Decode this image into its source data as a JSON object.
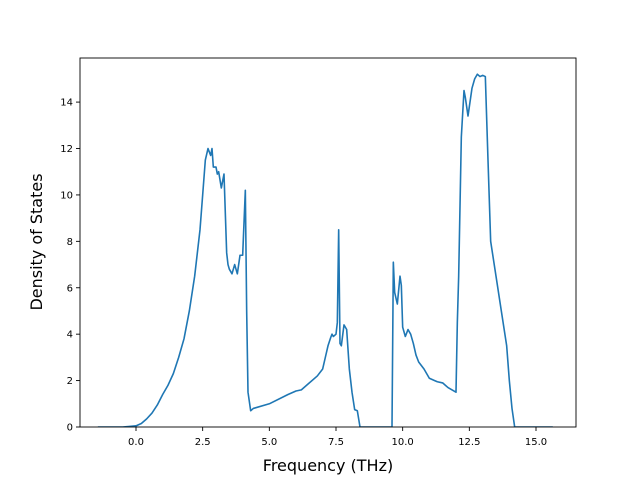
{
  "chart_data": {
    "type": "line",
    "title": "",
    "xlabel": "Frequency (THz)",
    "ylabel": "Density of States",
    "xlim": [
      -2.1,
      16.5
    ],
    "ylim": [
      0,
      15.9
    ],
    "xticks": [
      0.0,
      2.5,
      5.0,
      7.5,
      10.0,
      12.5,
      15.0
    ],
    "xtick_labels": [
      "0.0",
      "2.5",
      "5.0",
      "7.5",
      "10.0",
      "12.5",
      "15.0"
    ],
    "yticks": [
      0,
      2,
      4,
      6,
      8,
      10,
      12,
      14
    ],
    "ytick_labels": [
      "0",
      "2",
      "4",
      "6",
      "8",
      "10",
      "12",
      "14"
    ],
    "grid": false,
    "legend": "none",
    "line_color": "#1f77b4",
    "series": [
      {
        "x": [
          -1.4,
          -0.5,
          0.0,
          0.2,
          0.4,
          0.6,
          0.8,
          1.0,
          1.2,
          1.4,
          1.6,
          1.8,
          2.0,
          2.2,
          2.4,
          2.5,
          2.6,
          2.7,
          2.8,
          2.85,
          2.9,
          3.0,
          3.05,
          3.1,
          3.2,
          3.3,
          3.4,
          3.45,
          3.5,
          3.6,
          3.7,
          3.8,
          3.9,
          4.0,
          4.1,
          4.15,
          4.2,
          4.3,
          4.4,
          5.0,
          5.7,
          6.0,
          6.2,
          6.5,
          6.8,
          7.0,
          7.1,
          7.2,
          7.3,
          7.35,
          7.4,
          7.5,
          7.55,
          7.6,
          7.65,
          7.7,
          7.8,
          7.9,
          8.0,
          8.1,
          8.2,
          8.3,
          8.4,
          9.0,
          9.6,
          9.65,
          9.7,
          9.8,
          9.9,
          9.95,
          10.0,
          10.1,
          10.2,
          10.3,
          10.4,
          10.5,
          10.6,
          10.8,
          11.0,
          11.2,
          11.3,
          11.5,
          11.6,
          11.7,
          12.0,
          12.05,
          12.1,
          12.2,
          12.3,
          12.35,
          12.45,
          12.6,
          12.7,
          12.8,
          12.9,
          13.0,
          13.1,
          13.2,
          13.3,
          13.5,
          13.7,
          13.9,
          14.0,
          14.1,
          14.2,
          14.3,
          14.5,
          15.0,
          15.6
        ],
        "y": [
          0.0,
          0.0,
          0.05,
          0.15,
          0.35,
          0.6,
          0.95,
          1.4,
          1.8,
          2.3,
          3.0,
          3.8,
          5.0,
          6.5,
          8.5,
          10.0,
          11.5,
          12.0,
          11.7,
          12.0,
          11.2,
          11.2,
          10.9,
          11.0,
          10.3,
          10.9,
          7.5,
          7.0,
          6.8,
          6.6,
          7.0,
          6.6,
          7.4,
          7.4,
          10.2,
          5.0,
          1.5,
          0.7,
          0.8,
          1.0,
          1.4,
          1.55,
          1.6,
          1.9,
          2.2,
          2.5,
          3.0,
          3.5,
          3.85,
          4.0,
          3.9,
          4.0,
          4.5,
          8.5,
          3.6,
          3.5,
          4.4,
          4.2,
          2.5,
          1.5,
          0.75,
          0.7,
          0.0,
          0.0,
          0.0,
          7.1,
          5.8,
          5.3,
          6.5,
          6.1,
          4.3,
          3.9,
          4.2,
          4.0,
          3.6,
          3.1,
          2.8,
          2.5,
          2.1,
          2.0,
          1.95,
          1.9,
          1.8,
          1.7,
          1.5,
          4.5,
          6.5,
          12.5,
          14.5,
          14.2,
          13.4,
          14.6,
          15.0,
          15.2,
          15.1,
          15.15,
          15.1,
          11.5,
          8.0,
          6.5,
          5.0,
          3.5,
          2.0,
          0.8,
          0.0,
          0.0,
          0.0,
          0.0,
          0.0
        ]
      }
    ]
  }
}
